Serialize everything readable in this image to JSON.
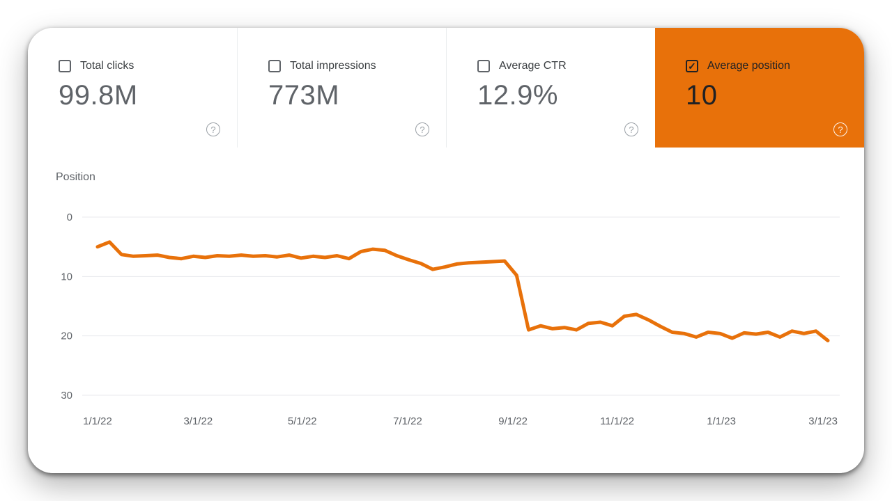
{
  "colors": {
    "accent_orange": "#e8710a",
    "metric_value_gray": "#5f6368",
    "metric_label_gray": "#3c4043",
    "selected_text_dark": "#202124",
    "grid_gray": "#e8eaed",
    "axis_label_gray": "#5f6368"
  },
  "icons": {
    "help_glyph": "?",
    "check_glyph": "✓"
  },
  "metrics": [
    {
      "label": "Total clicks",
      "value": "99.8M",
      "checked": false,
      "selected": false
    },
    {
      "label": "Total impressions",
      "value": "773M",
      "checked": false,
      "selected": false
    },
    {
      "label": "Average CTR",
      "value": "12.9%",
      "checked": false,
      "selected": false
    },
    {
      "label": "Average position",
      "value": "10",
      "checked": true,
      "selected": true
    }
  ],
  "chart_data": {
    "type": "line",
    "title": "Position",
    "ylabel": "Position",
    "series_name": "Average position",
    "y_inverted": true,
    "ylim": [
      0,
      30
    ],
    "yticks": [
      0,
      10,
      20,
      30
    ],
    "grid": true,
    "legend": "none",
    "x_unit": "week",
    "xtick_labels": [
      "1/1/22",
      "3/1/22",
      "5/1/22",
      "7/1/22",
      "9/1/22",
      "11/1/22",
      "1/1/23",
      "3/1/23"
    ],
    "xtick_positions": [
      0,
      8.4,
      17.1,
      25.9,
      34.7,
      43.4,
      52.1,
      60.6
    ],
    "values": [
      5.0,
      4.2,
      6.3,
      6.6,
      6.5,
      6.4,
      6.8,
      7.0,
      6.6,
      6.8,
      6.5,
      6.6,
      6.4,
      6.6,
      6.5,
      6.7,
      6.4,
      6.9,
      6.6,
      6.8,
      6.5,
      7.0,
      5.8,
      5.4,
      5.6,
      6.5,
      7.2,
      7.8,
      8.8,
      8.4,
      7.9,
      7.7,
      7.6,
      7.5,
      7.4,
      9.8,
      19.0,
      18.3,
      18.8,
      18.6,
      19.0,
      17.9,
      17.7,
      18.3,
      16.7,
      16.4,
      17.3,
      18.4,
      19.4,
      19.6,
      20.2,
      19.4,
      19.6,
      20.4,
      19.5,
      19.7,
      19.4,
      20.2,
      19.2,
      19.6,
      19.2,
      20.8
    ],
    "line_color": "#e8710a",
    "grid_color": "#e8eaed"
  }
}
